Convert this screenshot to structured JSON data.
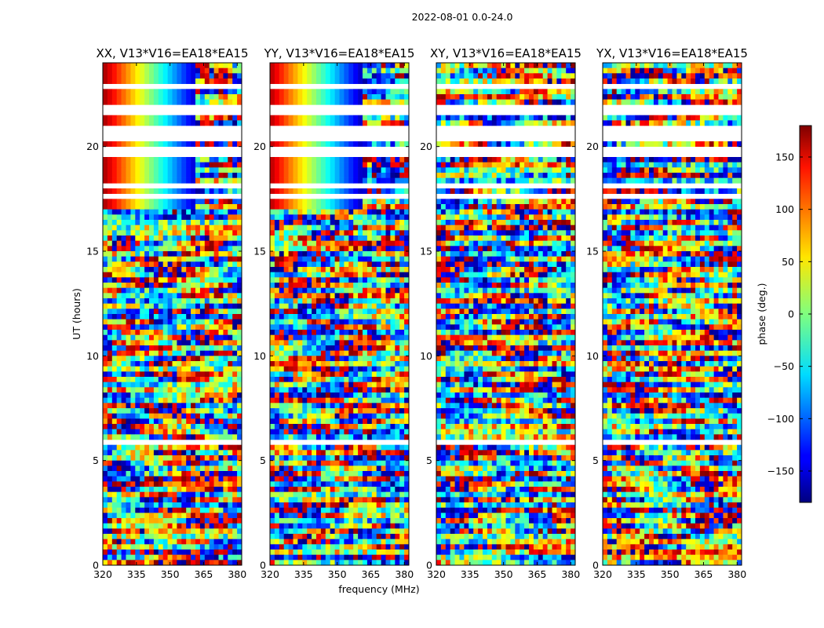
{
  "figure": {
    "suptitle": "2022-08-01 0.0-24.0"
  },
  "chart_data": {
    "type": "heatmap",
    "shared_xlabel": "frequency (MHz)",
    "shared_ylabel": "UT (hours)",
    "xlim": [
      320,
      382
    ],
    "ylim": [
      0,
      24
    ],
    "x_ticks": [
      "320",
      "335",
      "350",
      "365",
      "380"
    ],
    "y_ticks": [
      "0",
      "5",
      "10",
      "15",
      "20"
    ],
    "panels": [
      {
        "title": "XX, V13*V16=EA18*EA15"
      },
      {
        "title": "YY, V13*V16=EA18*EA15"
      },
      {
        "title": "XY, V13*V16=EA18*EA15"
      },
      {
        "title": "YX, V13*V16=EA18*EA15"
      }
    ],
    "colorbar": {
      "label": "phase (deg.)",
      "range": [
        -180,
        180
      ],
      "colormap": "jet",
      "ticks": [
        "150",
        "100",
        "50",
        "0",
        "−50",
        "−100",
        "−150"
      ]
    }
  }
}
